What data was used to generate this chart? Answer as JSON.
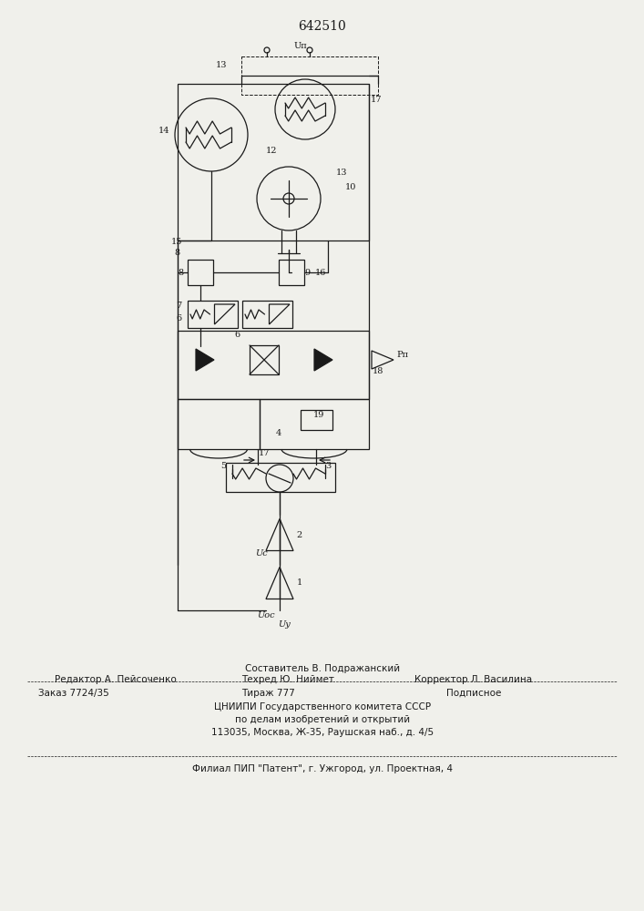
{
  "patent_number": "642510",
  "bg_color": "#f0f0eb",
  "diagram_color": "#1a1a1a",
  "footer": {
    "composer": "Составитель В. Подражанский",
    "editor": "Редактор А. Пейсоченко",
    "techred": "Техред Ю. Ниймет",
    "corrector": "Корректор Л. Василина",
    "order": "Заказ 7724/35",
    "tirazh": "Тираж 777",
    "podpisnoe": "Подписное",
    "org1": "ЦНИИПИ Государственного комитета СССР",
    "org2": "по делам изобретений и открытий",
    "address": "113035, Москва, Ж-35, Раушская наб., д. 4/5",
    "filial": "Филиал ПИП \"Патент\", г. Ужгород, ул. Проектная, 4"
  }
}
